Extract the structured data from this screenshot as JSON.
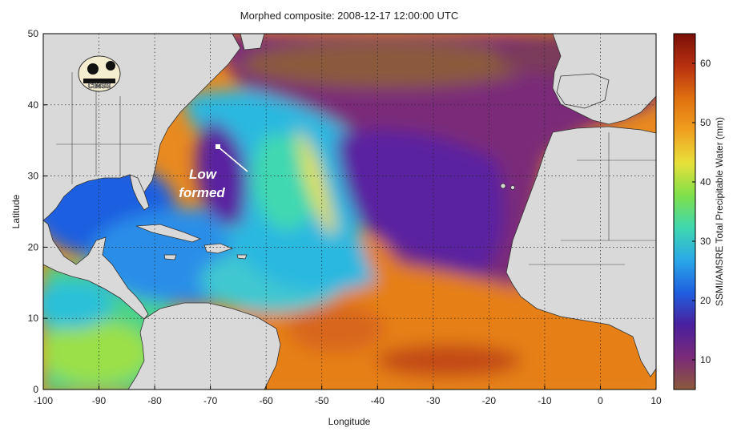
{
  "map": {
    "title": "Morphed composite: 2008-12-17 12:00:00 UTC",
    "xlabel": "Longitude",
    "ylabel": "Latitude",
    "annotation_line1": "Low",
    "annotation_line2": "formed",
    "logo_text": "CIMSS",
    "x_ticks": [
      "-100",
      "-90",
      "-80",
      "-70",
      "-60",
      "-50",
      "-40",
      "-30",
      "-20",
      "-10",
      "0",
      "10"
    ],
    "y_ticks": [
      "0",
      "10",
      "20",
      "30",
      "40",
      "50"
    ],
    "xlim": [
      -100,
      10
    ],
    "ylim": [
      0,
      50
    ]
  },
  "colorbar": {
    "label": "SSMI/AMSRE Total Precipitable Water (mm)",
    "ticks": [
      "10",
      "20",
      "30",
      "40",
      "50",
      "60"
    ],
    "range": [
      5,
      65
    ],
    "colors": [
      "#8b5a3c",
      "#7a2a78",
      "#4a1f9e",
      "#1f5fe0",
      "#2aa8e8",
      "#3fd8b0",
      "#7fe04a",
      "#e8e03a",
      "#f0a020",
      "#e07010",
      "#b83010",
      "#7a1008"
    ]
  },
  "colors": {
    "land": "#d9d9d9",
    "dry_air": "#7a2a78",
    "moist_ocean": "#e88a20",
    "annotation": "#ffffff"
  }
}
